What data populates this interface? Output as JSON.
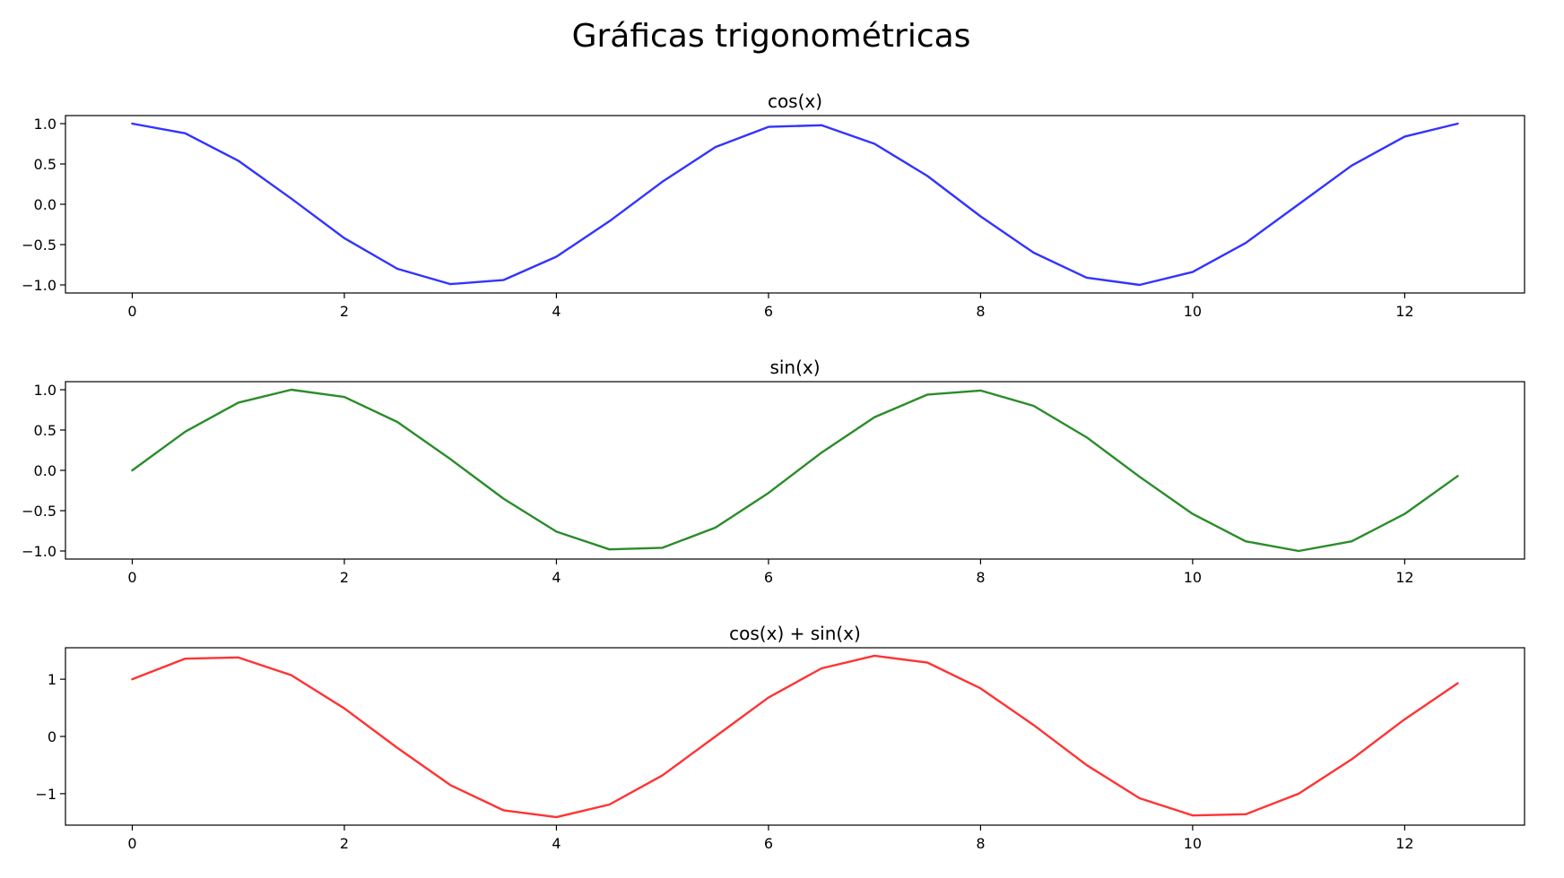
{
  "figure": {
    "title": "Gráficas trigonométricas"
  },
  "chart_data": [
    {
      "type": "line",
      "title": "cos(x)",
      "xlabel": "",
      "ylabel": "",
      "xlim": [
        -0.63,
        13.13
      ],
      "ylim": [
        -1.1,
        1.1
      ],
      "xticks": [
        0,
        2,
        4,
        6,
        8,
        10,
        12
      ],
      "xtick_labels": [
        "0",
        "2",
        "4",
        "6",
        "8",
        "10",
        "12"
      ],
      "yticks": [
        1.0,
        0.5,
        0.0,
        -0.5,
        -1.0
      ],
      "ytick_labels": [
        "1.0",
        "0.5",
        "0.0",
        "−0.5",
        "−1.0"
      ],
      "grid": false,
      "series": [
        {
          "color": "#3333ff",
          "x": [
            0.0,
            0.5,
            1.0,
            1.5,
            2.0,
            2.5,
            3.0,
            3.5,
            4.0,
            4.5,
            5.0,
            5.5,
            6.0,
            6.5,
            7.0,
            7.5,
            8.0,
            8.5,
            9.0,
            9.5,
            10.0,
            10.5,
            11.0,
            11.5,
            12.0,
            12.5
          ],
          "y": [
            1.0,
            0.88,
            0.54,
            0.07,
            -0.42,
            -0.8,
            -0.99,
            -0.94,
            -0.65,
            -0.21,
            0.28,
            0.71,
            0.96,
            0.98,
            0.75,
            0.35,
            -0.15,
            -0.6,
            -0.91,
            -1.0,
            -0.84,
            -0.48,
            0.0,
            0.48,
            0.84,
            1.0
          ]
        }
      ]
    },
    {
      "type": "line",
      "title": "sin(x)",
      "xlabel": "",
      "ylabel": "",
      "xlim": [
        -0.63,
        13.13
      ],
      "ylim": [
        -1.1,
        1.1
      ],
      "xticks": [
        0,
        2,
        4,
        6,
        8,
        10,
        12
      ],
      "xtick_labels": [
        "0",
        "2",
        "4",
        "6",
        "8",
        "10",
        "12"
      ],
      "yticks": [
        1.0,
        0.5,
        0.0,
        -0.5,
        -1.0
      ],
      "ytick_labels": [
        "1.0",
        "0.5",
        "0.0",
        "−0.5",
        "−1.0"
      ],
      "grid": false,
      "series": [
        {
          "color": "#2a8c2a",
          "x": [
            0.0,
            0.5,
            1.0,
            1.5,
            2.0,
            2.5,
            3.0,
            3.5,
            4.0,
            4.5,
            5.0,
            5.5,
            6.0,
            6.5,
            7.0,
            7.5,
            8.0,
            8.5,
            9.0,
            9.5,
            10.0,
            10.5,
            11.0,
            11.5,
            12.0,
            12.5
          ],
          "y": [
            0.0,
            0.48,
            0.84,
            1.0,
            0.91,
            0.6,
            0.14,
            -0.35,
            -0.76,
            -0.98,
            -0.96,
            -0.71,
            -0.28,
            0.22,
            0.66,
            0.94,
            0.99,
            0.8,
            0.41,
            -0.08,
            -0.54,
            -0.88,
            -1.0,
            -0.88,
            -0.54,
            -0.07
          ]
        }
      ]
    },
    {
      "type": "line",
      "title": "cos(x) + sin(x)",
      "xlabel": "",
      "ylabel": "",
      "xlim": [
        -0.63,
        13.13
      ],
      "ylim": [
        -1.55,
        1.55
      ],
      "xticks": [
        0,
        2,
        4,
        6,
        8,
        10,
        12
      ],
      "xtick_labels": [
        "0",
        "2",
        "4",
        "6",
        "8",
        "10",
        "12"
      ],
      "yticks": [
        1,
        0,
        -1
      ],
      "ytick_labels": [
        "1",
        "0",
        "−1"
      ],
      "grid": false,
      "series": [
        {
          "color": "#ff3333",
          "x": [
            0.0,
            0.5,
            1.0,
            1.5,
            2.0,
            2.5,
            3.0,
            3.5,
            4.0,
            4.5,
            5.0,
            5.5,
            6.0,
            6.5,
            7.0,
            7.5,
            8.0,
            8.5,
            9.0,
            9.5,
            10.0,
            10.5,
            11.0,
            11.5,
            12.0,
            12.5
          ],
          "y": [
            1.0,
            1.36,
            1.38,
            1.07,
            0.49,
            -0.2,
            -0.85,
            -1.29,
            -1.41,
            -1.19,
            -0.68,
            0.0,
            0.68,
            1.19,
            1.41,
            1.29,
            0.84,
            0.2,
            -0.5,
            -1.08,
            -1.38,
            -1.36,
            -1.0,
            -0.4,
            0.3,
            0.93
          ]
        }
      ]
    }
  ]
}
